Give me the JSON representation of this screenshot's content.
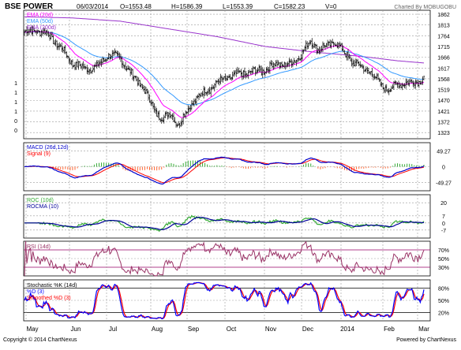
{
  "header": {
    "symbol": "BSE POWER",
    "date": "06/03/2014",
    "open": "O=1553.48",
    "high": "H=1586.39",
    "low": "L=1553.39",
    "close": "C=1582.23",
    "volume": "V=0",
    "charted_by": "Charted By MOBUGOBU"
  },
  "footer": {
    "copyright": "Copyright © 2014 ChartNexus",
    "powered": "Powered by ChartNexus"
  },
  "colors": {
    "price": "#000000",
    "ema20": "#ff00ff",
    "ema50": "#3399ff",
    "ema200": "#9933cc",
    "macd": "#0000cc",
    "signal": "#ff0000",
    "hist_pos": "#33aa33",
    "hist_neg": "#ff6633",
    "roc": "#33aa33",
    "rocma": "#000099",
    "rsi": "#993366",
    "stoch_k": "#0000ff",
    "stoch_d": "#ff0000"
  },
  "chart_data": [
    {
      "type": "candlestick",
      "panel": "price",
      "legend": [
        "EMA (20d)",
        "EMA (50d)",
        "EMA (200d)"
      ],
      "y_ticks": [
        "1862",
        "1813",
        "1764",
        "1715",
        "1666",
        "1617",
        "1568",
        "1519",
        "1470",
        "1421",
        "1372",
        "1323"
      ],
      "left_ticks": [
        "1",
        "1",
        "1",
        "1",
        "0",
        "0"
      ],
      "ylim": [
        1295,
        1880
      ],
      "x_ticks": [
        "May",
        "Jun",
        "Jul",
        "Aug",
        "Sep",
        "Oct",
        "Nov",
        "Dec",
        "2014",
        "Feb",
        "Mar"
      ],
      "close_anchors": [
        [
          0,
          1780
        ],
        [
          10,
          1790
        ],
        [
          20,
          1770
        ],
        [
          30,
          1710
        ],
        [
          40,
          1640
        ],
        [
          50,
          1615
        ],
        [
          60,
          1620
        ],
        [
          70,
          1680
        ],
        [
          80,
          1660
        ],
        [
          90,
          1580
        ],
        [
          100,
          1520
        ],
        [
          108,
          1420
        ],
        [
          115,
          1390
        ],
        [
          122,
          1405
        ],
        [
          128,
          1360
        ],
        [
          135,
          1420
        ],
        [
          142,
          1475
        ],
        [
          150,
          1510
        ],
        [
          160,
          1550
        ],
        [
          170,
          1575
        ],
        [
          180,
          1590
        ],
        [
          190,
          1600
        ],
        [
          200,
          1610
        ],
        [
          210,
          1640
        ],
        [
          220,
          1630
        ],
        [
          230,
          1680
        ],
        [
          238,
          1740
        ],
        [
          245,
          1700
        ],
        [
          252,
          1720
        ],
        [
          258,
          1740
        ],
        [
          265,
          1690
        ],
        [
          272,
          1650
        ],
        [
          280,
          1620
        ],
        [
          288,
          1600
        ],
        [
          296,
          1540
        ],
        [
          303,
          1520
        ],
        [
          310,
          1540
        ],
        [
          317,
          1555
        ],
        [
          322,
          1545
        ],
        [
          328,
          1560
        ],
        [
          332,
          1582
        ]
      ],
      "ema200_anchors": [
        [
          0,
          1850
        ],
        [
          40,
          1845
        ],
        [
          80,
          1830
        ],
        [
          120,
          1795
        ],
        [
          160,
          1760
        ],
        [
          200,
          1715
        ],
        [
          240,
          1690
        ],
        [
          280,
          1670
        ],
        [
          310,
          1650
        ],
        [
          332,
          1640
        ]
      ]
    },
    {
      "type": "line",
      "panel": "macd",
      "legend": [
        "MACD (26d,12d)",
        "Signal (9)"
      ],
      "y_ticks": [
        "49.27",
        "0",
        "-49.27"
      ],
      "ylim": [
        -75,
        75
      ]
    },
    {
      "type": "line",
      "panel": "roc",
      "legend": [
        "ROC (10d)",
        "ROCMA (10)"
      ],
      "y_ticks": [
        "20",
        "7",
        "0",
        "-7"
      ],
      "ylim": [
        -15,
        28
      ]
    },
    {
      "type": "line",
      "panel": "rsi",
      "legend": [
        "RSI (14d)"
      ],
      "y_ticks": [
        "70%",
        "50%",
        "30%"
      ],
      "ylim": [
        10,
        90
      ]
    },
    {
      "type": "line",
      "panel": "stochastic",
      "legend": [
        "Stochastic %K (14d)",
        "%D (3)",
        "Smoothed %D (3)"
      ],
      "y_ticks": [
        "80%",
        "50%",
        "20%"
      ],
      "ylim": [
        0,
        100
      ]
    }
  ]
}
